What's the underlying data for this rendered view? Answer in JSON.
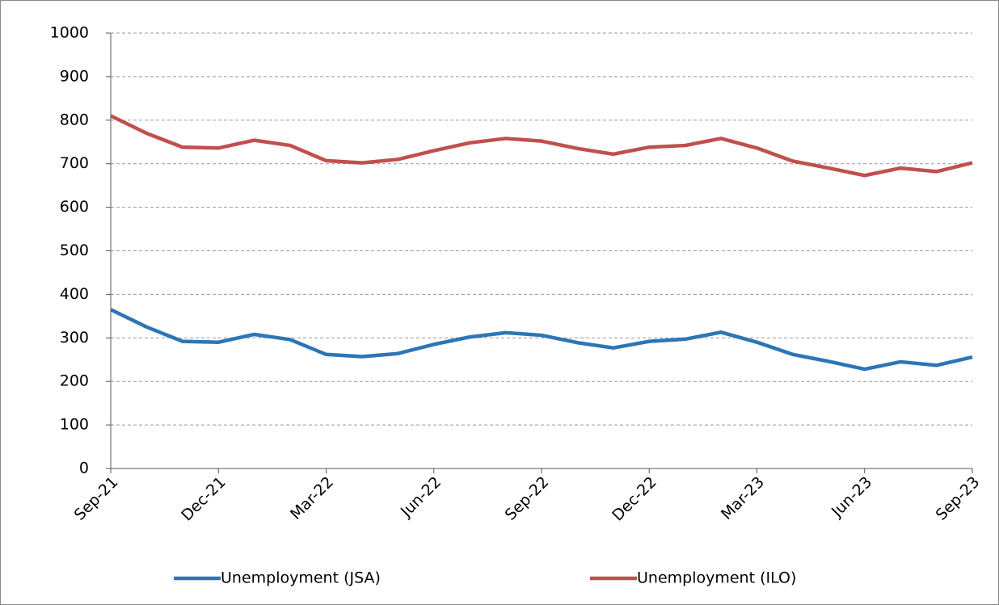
{
  "chart_data": {
    "type": "line",
    "categories": [
      "Sep-21",
      null,
      null,
      "Dec-21",
      null,
      null,
      "Mar-22",
      null,
      null,
      "Jun-22",
      null,
      null,
      "Sep-22",
      null,
      null,
      "Dec-22",
      null,
      null,
      "Mar-23",
      null,
      null,
      "Jun-23",
      null,
      null,
      "Sep-23"
    ],
    "series": [
      {
        "name": "Unemployment (JSA)",
        "color": "#2e75b6",
        "values": [
          365,
          325,
          292,
          290,
          308,
          296,
          262,
          257,
          264,
          285,
          302,
          312,
          306,
          289,
          277,
          292,
          297,
          313,
          290,
          262,
          246,
          228,
          245,
          237,
          256
        ]
      },
      {
        "name": "Unemployment (ILO)",
        "color": "#c0504d",
        "values": [
          810,
          770,
          738,
          736,
          754,
          742,
          707,
          702,
          710,
          730,
          748,
          758,
          752,
          735,
          722,
          738,
          742,
          758,
          736,
          706,
          690,
          673,
          690,
          682,
          702
        ]
      }
    ],
    "ylim": [
      0,
      1000
    ],
    "yticks": [
      0,
      100,
      200,
      300,
      400,
      500,
      600,
      700,
      800,
      900,
      1000
    ],
    "grid": true,
    "legend": "bottom"
  }
}
